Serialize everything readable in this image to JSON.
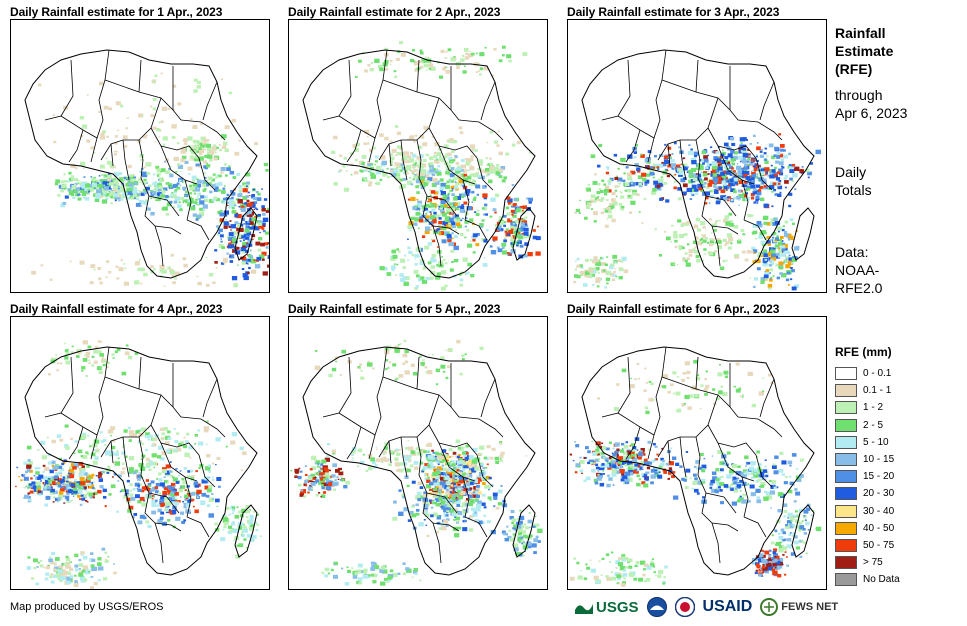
{
  "panels": [
    {
      "title": "Daily Rainfall estimate for 1 Apr., 2023",
      "day": 1
    },
    {
      "title": "Daily Rainfall estimate for 2 Apr., 2023",
      "day": 2
    },
    {
      "title": "Daily Rainfall estimate for 3 Apr., 2023",
      "day": 3
    },
    {
      "title": "Daily Rainfall estimate for 4 Apr., 2023",
      "day": 4
    },
    {
      "title": "Daily Rainfall estimate for 5 Apr., 2023",
      "day": 5
    },
    {
      "title": "Daily Rainfall estimate for 6 Apr., 2023",
      "day": 6
    }
  ],
  "side": {
    "title_line1": "Rainfall",
    "title_line2": "Estimate",
    "title_line3": "(RFE)",
    "through_line1": "through",
    "through_line2": "Apr 6, 2023",
    "totals_line1": "Daily",
    "totals_line2": "Totals",
    "data_line1": "Data:",
    "data_line2": "NOAA-",
    "data_line3": "RFE2.0"
  },
  "legend": {
    "title": "RFE (mm)",
    "items": [
      {
        "label": "0 - 0.1",
        "color": "#ffffff"
      },
      {
        "label": "0.1 - 1",
        "color": "#e8d9bd"
      },
      {
        "label": "1 - 2",
        "color": "#bdf0b4"
      },
      {
        "label": "2 - 5",
        "color": "#6fe06f"
      },
      {
        "label": "5 - 10",
        "color": "#b2ecf2"
      },
      {
        "label": "10 - 15",
        "color": "#87bde8"
      },
      {
        "label": "15 - 20",
        "color": "#4f90e6"
      },
      {
        "label": "20 - 30",
        "color": "#1f5ce0"
      },
      {
        "label": "30 - 40",
        "color": "#fde68a"
      },
      {
        "label": "40 - 50",
        "color": "#f5a800"
      },
      {
        "label": "50 - 75",
        "color": "#f03c0a"
      },
      {
        "label": "> 75",
        "color": "#a01e14"
      },
      {
        "label": "No Data",
        "color": "#9a9a9a"
      }
    ]
  },
  "footer": {
    "credit": "Map produced by USGS/EROS",
    "logo_usgs": "USGS",
    "logo_usaid": "USAID",
    "logo_fews": "FEWS NET"
  }
}
